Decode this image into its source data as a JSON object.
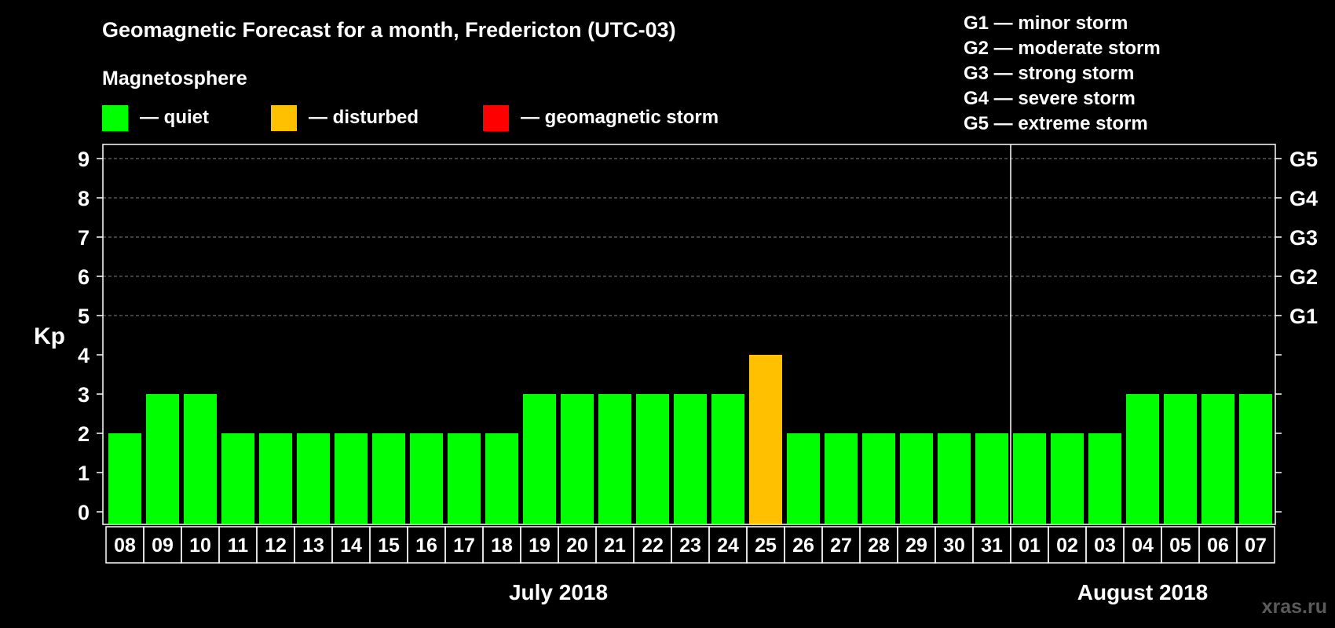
{
  "chart_data": {
    "type": "bar",
    "title": "Geomagnetic Forecast for a month, Fredericton (UTC-03)",
    "magnetosphere_heading": "Magnetosphere",
    "legend": [
      {
        "key": "quiet",
        "label": "— quiet",
        "color": "#00ff00"
      },
      {
        "key": "disturbed",
        "label": "— disturbed",
        "color": "#ffc000"
      },
      {
        "key": "storm",
        "label": "— geomagnetic storm",
        "color": "#ff0000"
      }
    ],
    "storm_scale": [
      "G1 — minor storm",
      "G2 — moderate storm",
      "G3 — strong storm",
      "G4 — severe storm",
      "G5 — extreme storm"
    ],
    "ylabel": "Kp",
    "ylim": [
      0,
      9
    ],
    "yticks": [
      "0",
      "1",
      "2",
      "3",
      "4",
      "5",
      "6",
      "7",
      "8",
      "9"
    ],
    "right_labels": [
      {
        "kp": 5,
        "label": "G1"
      },
      {
        "kp": 6,
        "label": "G2"
      },
      {
        "kp": 7,
        "label": "G3"
      },
      {
        "kp": 8,
        "label": "G4"
      },
      {
        "kp": 9,
        "label": "G5"
      }
    ],
    "categories": [
      "08",
      "09",
      "10",
      "11",
      "12",
      "13",
      "14",
      "15",
      "16",
      "17",
      "18",
      "19",
      "20",
      "21",
      "22",
      "23",
      "24",
      "25",
      "26",
      "27",
      "28",
      "29",
      "30",
      "31",
      "01",
      "02",
      "03",
      "04",
      "05",
      "06",
      "07"
    ],
    "values": [
      2,
      3,
      3,
      2,
      2,
      2,
      2,
      2,
      2,
      2,
      2,
      3,
      3,
      3,
      3,
      3,
      3,
      4,
      2,
      2,
      2,
      2,
      2,
      2,
      2,
      2,
      2,
      3,
      3,
      3,
      3
    ],
    "status": [
      "quiet",
      "quiet",
      "quiet",
      "quiet",
      "quiet",
      "quiet",
      "quiet",
      "quiet",
      "quiet",
      "quiet",
      "quiet",
      "quiet",
      "quiet",
      "quiet",
      "quiet",
      "quiet",
      "quiet",
      "disturbed",
      "quiet",
      "quiet",
      "quiet",
      "quiet",
      "quiet",
      "quiet",
      "quiet",
      "quiet",
      "quiet",
      "quiet",
      "quiet",
      "quiet",
      "quiet"
    ],
    "months": [
      {
        "label": "July 2018",
        "first_index": 0,
        "last_index": 23
      },
      {
        "label": "August 2018",
        "first_index": 24,
        "last_index": 30
      }
    ],
    "month_divider_after_index": 23,
    "watermark": "xras.ru"
  },
  "colors": {
    "background": "#000000",
    "foreground": "#ffffff",
    "grid": "#808080"
  }
}
